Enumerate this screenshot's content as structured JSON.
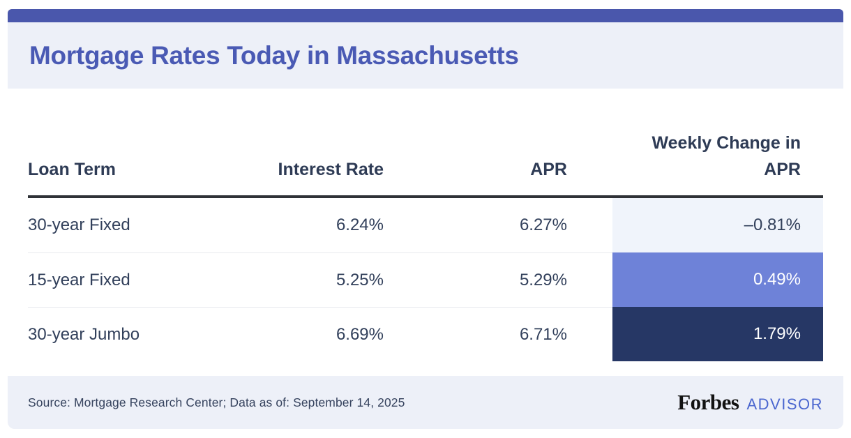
{
  "header": {
    "title": "Mortgage Rates Today in Massachusetts"
  },
  "table": {
    "columns": {
      "loan_term": "Loan Term",
      "interest_rate": "Interest Rate",
      "apr": "APR",
      "weekly_change": "Weekly Change in APR"
    },
    "rows": [
      {
        "loan_term": "30-year Fixed",
        "interest_rate": "6.24%",
        "apr": "6.27%",
        "weekly_change": "–0.81%",
        "highlight": "light"
      },
      {
        "loan_term": "15-year Fixed",
        "interest_rate": "5.25%",
        "apr": "5.29%",
        "weekly_change": "0.49%",
        "highlight": "medium"
      },
      {
        "loan_term": "30-year Jumbo",
        "interest_rate": "6.69%",
        "apr": "6.71%",
        "weekly_change": "1.79%",
        "highlight": "dark"
      }
    ]
  },
  "footer": {
    "source": "Source: Mortgage Research Center; Data as of: September 14, 2025",
    "brand": "Forbes",
    "brand_suffix": "ADVISOR"
  },
  "colors": {
    "topbar": "#4a57ac",
    "panel-bg": "#edf0f8",
    "title-text": "#4a5ab4",
    "head-text": "#2e3b55",
    "body-text": "#32405b",
    "source-text": "#36435e",
    "rule-dark": "#2f3237",
    "row-divider": "#e8eaef",
    "chg-light-bg": "#f0f4fb",
    "chg-mid-bg": "#6e82d8",
    "chg-dark-bg": "#263765",
    "chg-on-dark": "#ffffff",
    "advisor-blue": "#4a66cf",
    "forbes-black": "#121212"
  }
}
